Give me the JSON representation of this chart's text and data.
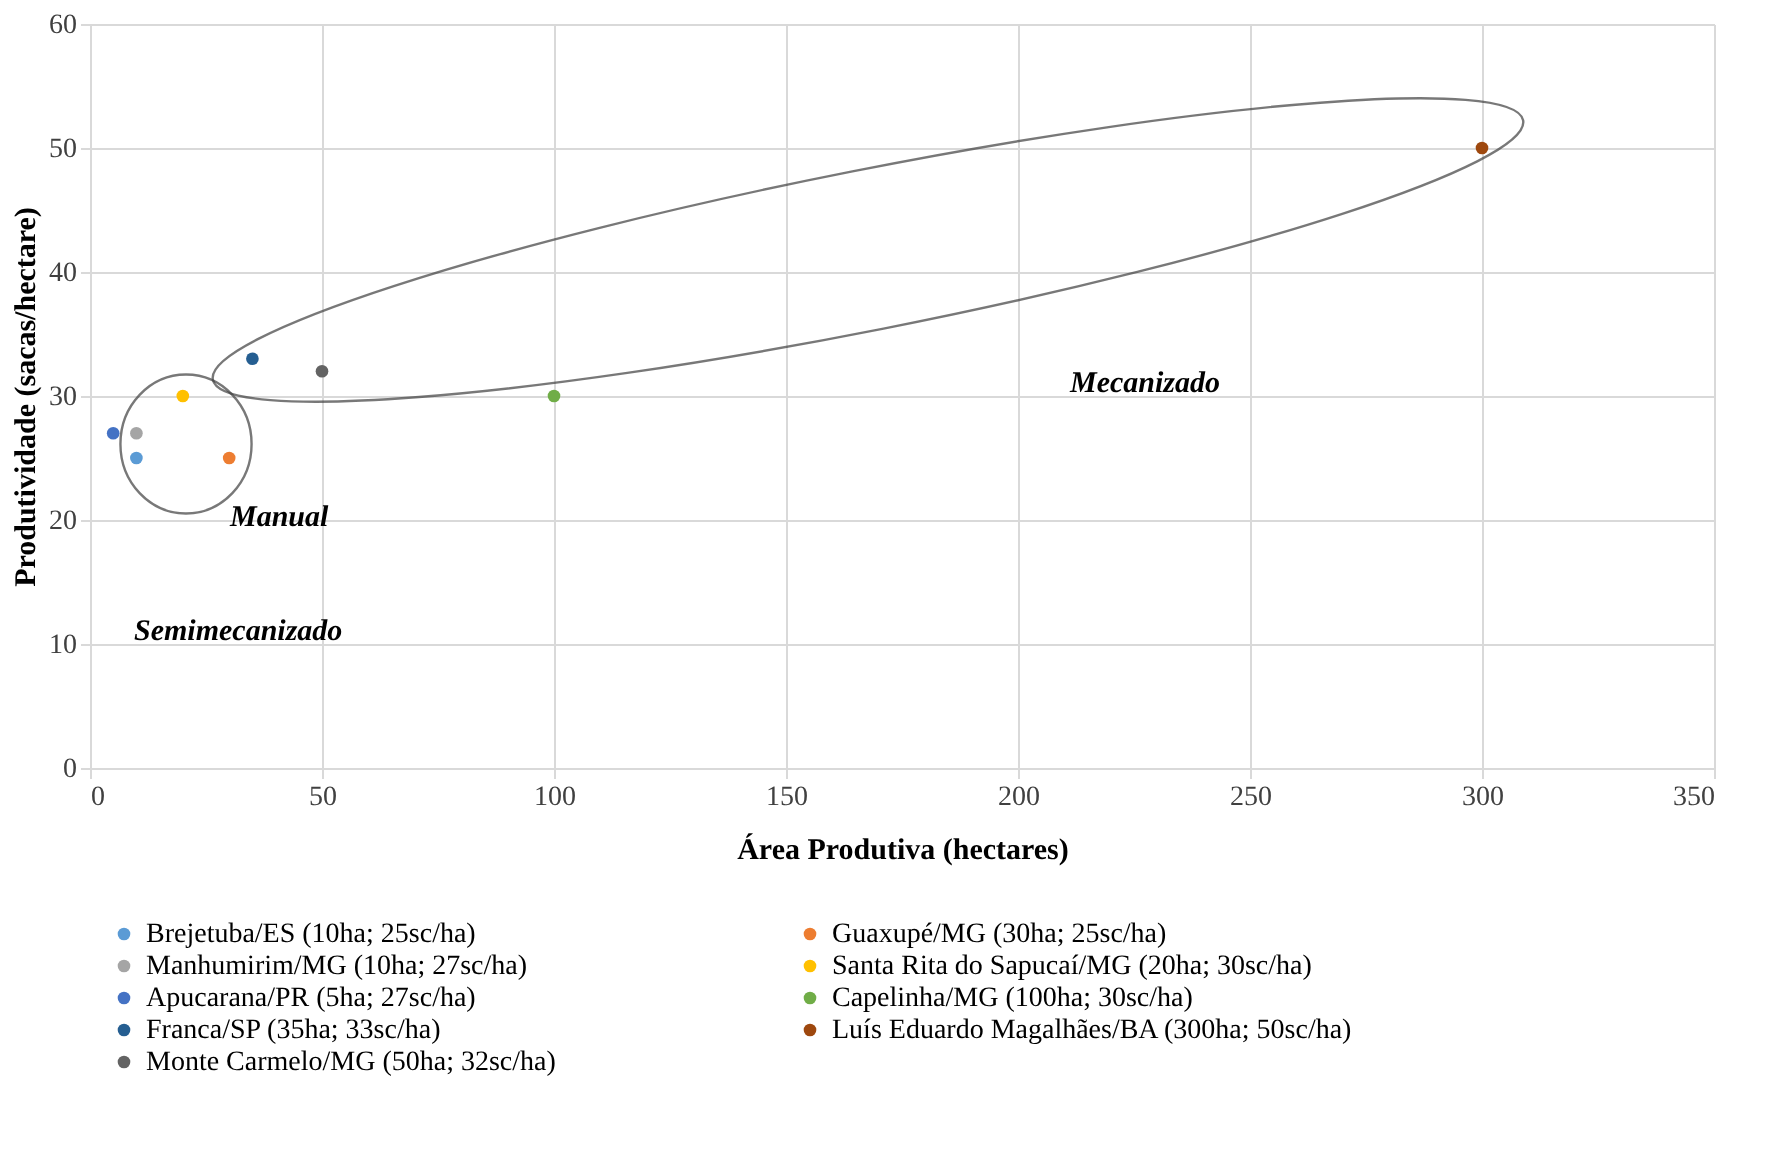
{
  "chart_data": {
    "type": "scatter",
    "xlabel": "Área Produtiva (hectares)",
    "ylabel": "Produtividade (sacas/hectare)",
    "xlim": [
      0,
      350
    ],
    "xticks": [
      0,
      50,
      100,
      150,
      200,
      250,
      300,
      350
    ],
    "ylim": [
      0,
      60
    ],
    "yticks": [
      0,
      10,
      20,
      30,
      40,
      50,
      60
    ],
    "grid": true,
    "legend": "bottom",
    "marker": "circle",
    "series": [
      {
        "name": "Brejetuba/ES (10ha; 25sc/ha)",
        "color": "#5b9bd5",
        "x": [
          10
        ],
        "values": [
          25
        ]
      },
      {
        "name": "Guaxupé/MG (30ha; 25sc/ha)",
        "color": "#ed7d31",
        "x": [
          30
        ],
        "values": [
          25
        ]
      },
      {
        "name": "Manhumirim/MG (10ha; 27sc/ha)",
        "color": "#a5a5a5",
        "x": [
          10
        ],
        "values": [
          27
        ]
      },
      {
        "name": "Santa Rita do Sapucaí/MG (20ha; 30sc/ha)",
        "color": "#ffc000",
        "x": [
          20
        ],
        "values": [
          30
        ]
      },
      {
        "name": "Apucarana/PR (5ha; 27sc/ha)",
        "color": "#4472c4",
        "x": [
          5
        ],
        "values": [
          27
        ]
      },
      {
        "name": "Capelinha/MG (100ha; 30sc/ha)",
        "color": "#70ad47",
        "x": [
          100
        ],
        "values": [
          30
        ]
      },
      {
        "name": "Franca/SP (35ha; 33sc/ha)",
        "color": "#255e91",
        "x": [
          35
        ],
        "values": [
          33
        ]
      },
      {
        "name": "Luís Eduardo Magalhães/BA (300ha; 50sc/ha)",
        "color": "#9e480e",
        "x": [
          300
        ],
        "values": [
          50
        ]
      },
      {
        "name": "Monte Carmelo/MG (50ha; 32sc/ha)",
        "color": "#636363",
        "x": [
          50
        ],
        "values": [
          32
        ]
      }
    ],
    "annotations": [
      "Mecanizado",
      "Manual",
      "Semimecanizado"
    ]
  }
}
